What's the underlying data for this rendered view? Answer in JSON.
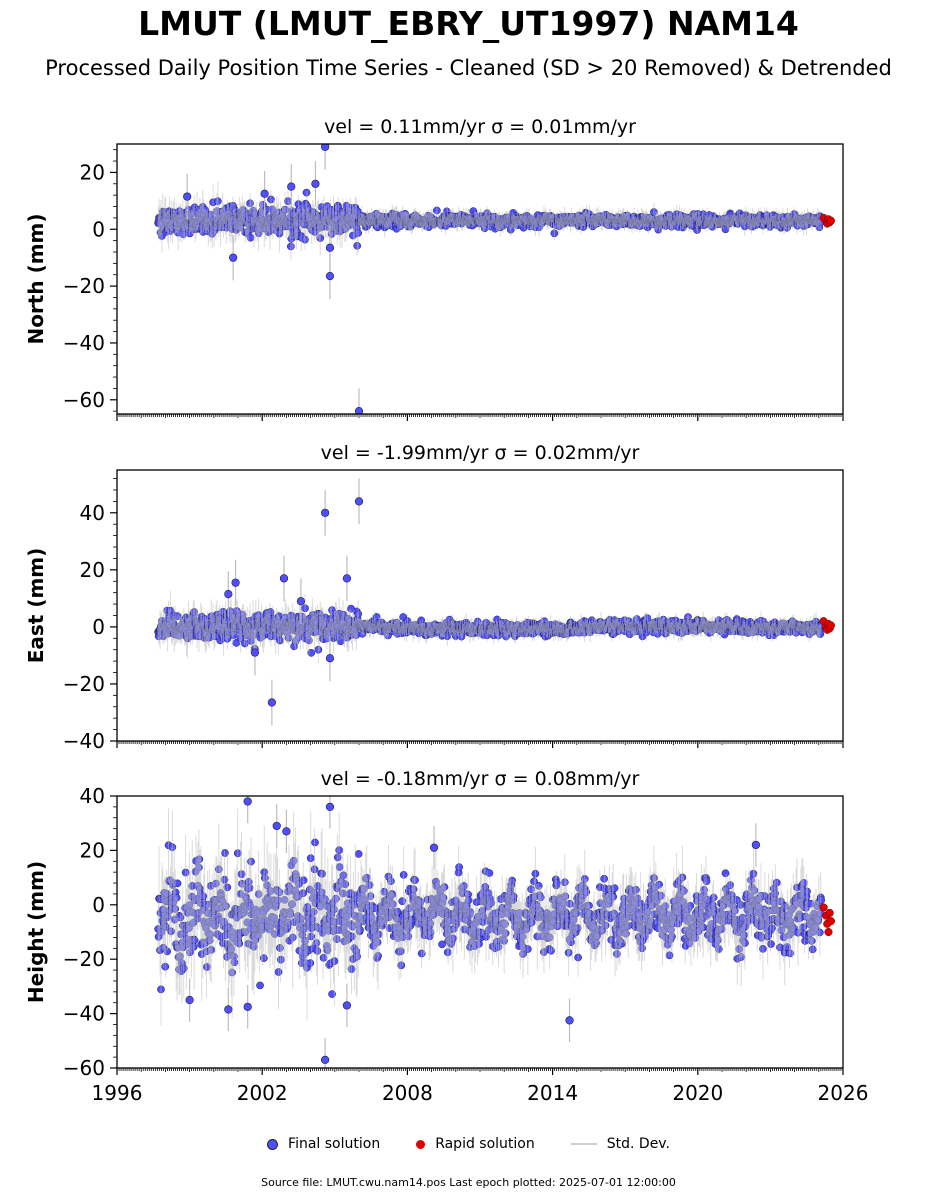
{
  "title": "LMUT (LMUT_EBRY_UT1997) NAM14",
  "subtitle": "Processed Daily Position Time Series - Cleaned (SD > 20 Removed) & Detrended",
  "legend": {
    "final": "Final solution",
    "rapid": "Rapid solution",
    "std": "Std. Dev."
  },
  "source_note": "Source file: LMUT.cwu.nam14.pos  Last epoch plotted: 2025-07-01 12:00:00",
  "colors": {
    "final": "#4f4fff",
    "rapid": "#e00000",
    "std": "#bdbdbd"
  },
  "chart_data": [
    {
      "type": "scatter",
      "title": "vel = 0.11mm/yr   σ = 0.01mm/yr",
      "ylabel": "North (mm)",
      "xlim": [
        1996,
        2026
      ],
      "ylim": [
        -65,
        30
      ],
      "yticks": [
        20,
        0,
        -20,
        -40,
        -60
      ],
      "ytick_labels": [
        "20",
        "0",
        "−20",
        "−40",
        "−60"
      ],
      "xticks": [
        1996,
        2002,
        2008,
        2014,
        2020,
        2026
      ],
      "xtick_labels": [],
      "final_outliers": [
        {
          "x": 2004.6,
          "y": 29
        },
        {
          "x": 2006.0,
          "y": -64
        },
        {
          "x": 2004.8,
          "y": -16.5
        },
        {
          "x": 2000.8,
          "y": -10
        },
        {
          "x": 2004.2,
          "y": 16
        },
        {
          "x": 2003.2,
          "y": 15
        },
        {
          "x": 2002.1,
          "y": 12.5
        },
        {
          "x": 1998.9,
          "y": 11.5
        },
        {
          "x": 2004.8,
          "y": -6.5
        }
      ],
      "rapid": [
        {
          "x": 2025.2,
          "y": 4
        },
        {
          "x": 2025.3,
          "y": 3
        },
        {
          "x": 2025.35,
          "y": 2
        },
        {
          "x": 2025.4,
          "y": 3.5
        },
        {
          "x": 2025.45,
          "y": 2.5
        },
        {
          "x": 2025.5,
          "y": 3
        }
      ]
    },
    {
      "type": "scatter",
      "title": "vel = -1.99mm/yr   σ = 0.02mm/yr",
      "ylabel": "East (mm)",
      "xlim": [
        1996,
        2026
      ],
      "ylim": [
        -40,
        55
      ],
      "yticks": [
        40,
        20,
        0,
        -20,
        -40
      ],
      "ytick_labels": [
        "40",
        "20",
        "0",
        "−20",
        "−40"
      ],
      "xticks": [
        1996,
        2002,
        2008,
        2014,
        2020,
        2026
      ],
      "xtick_labels": [],
      "final_outliers": [
        {
          "x": 2004.6,
          "y": 40
        },
        {
          "x": 2006.0,
          "y": 44
        },
        {
          "x": 2002.4,
          "y": -26.5
        },
        {
          "x": 2002.9,
          "y": 17
        },
        {
          "x": 2005.5,
          "y": 17
        },
        {
          "x": 2000.9,
          "y": 15.5
        },
        {
          "x": 2000.6,
          "y": 11.5
        },
        {
          "x": 2004.8,
          "y": -11
        },
        {
          "x": 2003.6,
          "y": 9
        },
        {
          "x": 2001.7,
          "y": -9
        }
      ],
      "rapid": [
        {
          "x": 2025.2,
          "y": 2
        },
        {
          "x": 2025.3,
          "y": 0
        },
        {
          "x": 2025.35,
          "y": -1
        },
        {
          "x": 2025.4,
          "y": 1
        },
        {
          "x": 2025.45,
          "y": -0.5
        },
        {
          "x": 2025.5,
          "y": 0.5
        }
      ]
    },
    {
      "type": "scatter",
      "title": "vel = -0.18mm/yr   σ = 0.08mm/yr",
      "ylabel": "Height (mm)",
      "xlim": [
        1996,
        2026
      ],
      "ylim": [
        -60,
        40
      ],
      "yticks": [
        40,
        20,
        0,
        -20,
        -40,
        -60
      ],
      "ytick_labels": [
        "40",
        "20",
        "0",
        "−20",
        "−40",
        "−60"
      ],
      "xticks": [
        1996,
        2002,
        2008,
        2014,
        2020,
        2026
      ],
      "xtick_labels": [
        "1996",
        "2002",
        "2008",
        "2014",
        "2020",
        "2026"
      ],
      "final_outliers": [
        {
          "x": 2001.4,
          "y": 38
        },
        {
          "x": 2004.8,
          "y": 36
        },
        {
          "x": 2004.6,
          "y": -57
        },
        {
          "x": 2014.7,
          "y": -42.5
        },
        {
          "x": 2000.6,
          "y": -38.5
        },
        {
          "x": 2001.4,
          "y": -37.5
        },
        {
          "x": 1999.0,
          "y": -35
        },
        {
          "x": 2005.5,
          "y": -37
        },
        {
          "x": 2002.6,
          "y": 29
        },
        {
          "x": 2003.0,
          "y": 27
        },
        {
          "x": 2022.4,
          "y": 22
        },
        {
          "x": 2009.1,
          "y": 21
        }
      ],
      "rapid": [
        {
          "x": 2025.2,
          "y": -1
        },
        {
          "x": 2025.3,
          "y": -4
        },
        {
          "x": 2025.35,
          "y": -7
        },
        {
          "x": 2025.4,
          "y": -10
        },
        {
          "x": 2025.45,
          "y": -3
        },
        {
          "x": 2025.5,
          "y": -6
        }
      ]
    }
  ]
}
